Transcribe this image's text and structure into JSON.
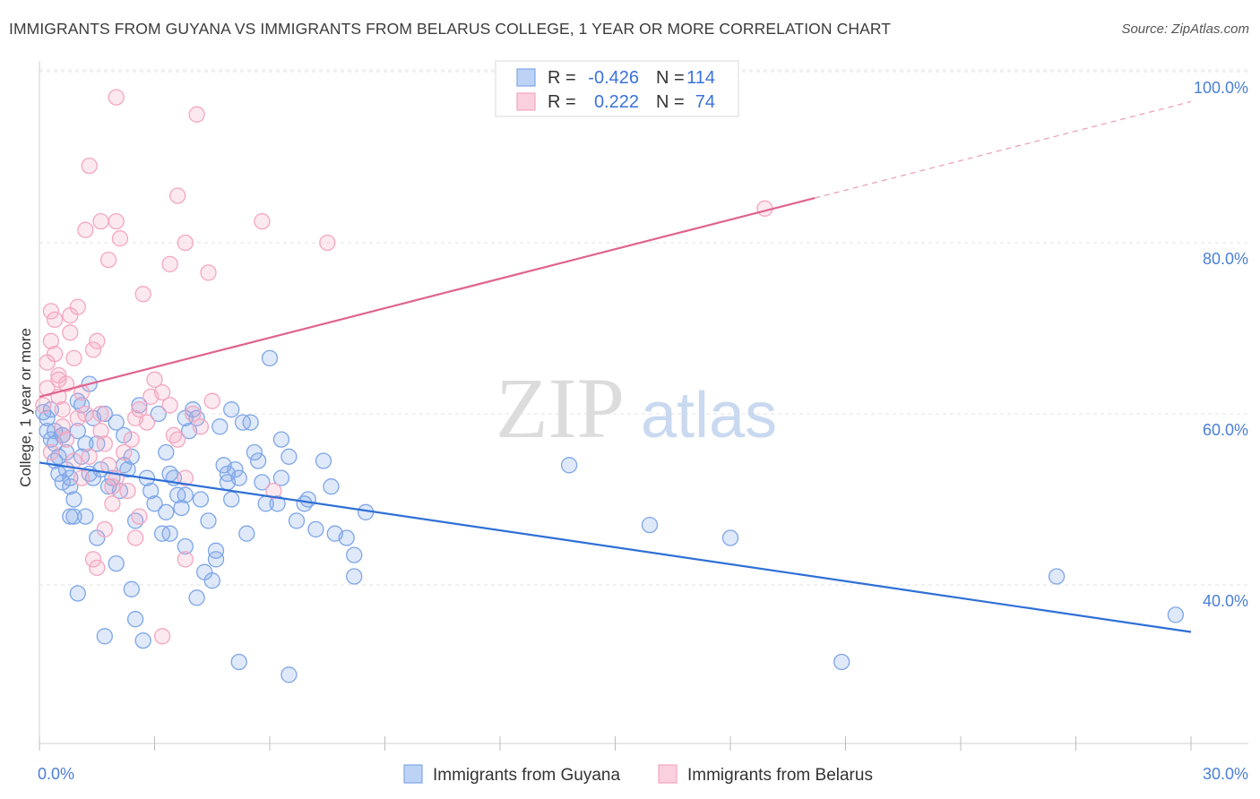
{
  "title": "IMMIGRANTS FROM GUYANA VS IMMIGRANTS FROM BELARUS COLLEGE, 1 YEAR OR MORE CORRELATION CHART",
  "source": "Source: ZipAtlas.com",
  "watermark": {
    "zip": "ZIP",
    "atlas": "atlas"
  },
  "stats_box": {
    "rows": [
      {
        "r_label": "R =",
        "r_value": "-0.426",
        "n_label": "N =",
        "n_value": "114",
        "color": "#7ea6e8"
      },
      {
        "r_label": "R =",
        "r_value": "0.222",
        "n_label": "N =",
        "n_value": "74",
        "color": "#f4a6c0"
      }
    ]
  },
  "chart_data": {
    "type": "scatter",
    "title": "IMMIGRANTS FROM GUYANA VS IMMIGRANTS FROM BELARUS COLLEGE, 1 YEAR OR MORE CORRELATION CHART",
    "xlabel": "",
    "ylabel": "College, 1 year or more",
    "xlim": [
      0,
      30
    ],
    "ylim": [
      22,
      102
    ],
    "x_ticks": [
      "0.0%",
      "30.0%"
    ],
    "y_ticks": [
      {
        "value": 40,
        "label": "40.0%"
      },
      {
        "value": 60,
        "label": "60.0%"
      },
      {
        "value": 80,
        "label": "80.0%"
      },
      {
        "value": 100,
        "label": "100.0%"
      }
    ],
    "grid": true,
    "legend": "bottom",
    "series": [
      {
        "name": "Immigrants from Guyana",
        "color": "#7ea6e8",
        "line_color": "#2f6fd6",
        "r": -0.426,
        "n": 114,
        "trend": {
          "x0": 0,
          "y0": 54.3,
          "x1": 30,
          "y1": 34.5,
          "dash_from": null
        },
        "points": [
          [
            0.1,
            60.2
          ],
          [
            0.2,
            59.5
          ],
          [
            0.2,
            58.0
          ],
          [
            0.3,
            57.0
          ],
          [
            0.3,
            60.5
          ],
          [
            0.4,
            56.5
          ],
          [
            0.4,
            58.0
          ],
          [
            0.5,
            55.0
          ],
          [
            0.5,
            53.0
          ],
          [
            0.6,
            52.0
          ],
          [
            0.6,
            57.5
          ],
          [
            0.7,
            55.5
          ],
          [
            0.7,
            53.5
          ],
          [
            0.8,
            51.5
          ],
          [
            0.8,
            48.0
          ],
          [
            0.9,
            50.0
          ],
          [
            0.9,
            48.0
          ],
          [
            1.0,
            61.5
          ],
          [
            1.0,
            58.0
          ],
          [
            1.1,
            61.0
          ],
          [
            1.2,
            56.5
          ],
          [
            1.3,
            53.0
          ],
          [
            1.3,
            63.5
          ],
          [
            1.4,
            52.5
          ],
          [
            1.4,
            59.5
          ],
          [
            1.5,
            56.5
          ],
          [
            1.6,
            53.5
          ],
          [
            1.7,
            60.0
          ],
          [
            1.8,
            51.5
          ],
          [
            1.9,
            52.5
          ],
          [
            2.0,
            59.0
          ],
          [
            2.1,
            51.0
          ],
          [
            2.2,
            57.5
          ],
          [
            2.3,
            53.5
          ],
          [
            2.4,
            55.0
          ],
          [
            2.5,
            47.5
          ],
          [
            2.6,
            61.0
          ],
          [
            2.8,
            52.5
          ],
          [
            2.9,
            51.0
          ],
          [
            3.0,
            49.5
          ],
          [
            3.1,
            60.0
          ],
          [
            3.2,
            46.0
          ],
          [
            3.3,
            48.5
          ],
          [
            3.4,
            53.0
          ],
          [
            3.5,
            52.5
          ],
          [
            3.6,
            50.5
          ],
          [
            3.7,
            49.0
          ],
          [
            3.8,
            44.5
          ],
          [
            3.9,
            58.0
          ],
          [
            4.0,
            60.5
          ],
          [
            4.1,
            59.5
          ],
          [
            4.2,
            50.0
          ],
          [
            4.3,
            41.5
          ],
          [
            4.4,
            47.5
          ],
          [
            4.5,
            40.5
          ],
          [
            4.6,
            44.0
          ],
          [
            4.7,
            58.5
          ],
          [
            4.8,
            54.0
          ],
          [
            4.9,
            53.0
          ],
          [
            5.0,
            50.0
          ],
          [
            5.1,
            53.5
          ],
          [
            5.2,
            52.5
          ],
          [
            5.3,
            59.0
          ],
          [
            5.4,
            46.0
          ],
          [
            5.5,
            59.0
          ],
          [
            5.6,
            55.5
          ],
          [
            5.7,
            54.5
          ],
          [
            5.8,
            52.0
          ],
          [
            5.9,
            49.5
          ],
          [
            6.0,
            66.5
          ],
          [
            6.2,
            49.5
          ],
          [
            6.3,
            57.0
          ],
          [
            6.5,
            55.0
          ],
          [
            6.7,
            47.5
          ],
          [
            6.9,
            49.5
          ],
          [
            7.2,
            46.5
          ],
          [
            7.4,
            54.5
          ],
          [
            7.7,
            46.0
          ],
          [
            8.0,
            45.5
          ],
          [
            8.2,
            43.5
          ],
          [
            8.5,
            48.5
          ],
          [
            1.0,
            39.0
          ],
          [
            1.7,
            34.0
          ],
          [
            2.5,
            36.0
          ],
          [
            2.7,
            33.5
          ],
          [
            4.1,
            38.5
          ],
          [
            5.2,
            31.0
          ],
          [
            6.5,
            29.5
          ],
          [
            2.4,
            39.5
          ],
          [
            3.4,
            46.0
          ],
          [
            3.8,
            50.5
          ],
          [
            4.6,
            43.0
          ],
          [
            2.0,
            42.5
          ],
          [
            1.5,
            45.5
          ],
          [
            1.2,
            48.0
          ],
          [
            0.8,
            52.5
          ],
          [
            0.4,
            54.5
          ],
          [
            0.6,
            57.5
          ],
          [
            1.1,
            55.0
          ],
          [
            5.0,
            60.5
          ],
          [
            7.6,
            51.5
          ],
          [
            6.3,
            52.5
          ],
          [
            8.2,
            41.0
          ],
          [
            7.0,
            50.0
          ],
          [
            4.9,
            52.0
          ],
          [
            3.8,
            59.5
          ],
          [
            3.3,
            55.5
          ],
          [
            2.2,
            54.0
          ],
          [
            13.8,
            54.0
          ],
          [
            15.9,
            47.0
          ],
          [
            18.0,
            45.5
          ],
          [
            26.5,
            41.0
          ],
          [
            29.6,
            36.5
          ],
          [
            20.9,
            31.0
          ]
        ]
      },
      {
        "name": "Immigrants from Belarus",
        "color": "#f4a6c0",
        "line_color": "#e0638f",
        "r": 0.222,
        "n": 74,
        "trend": {
          "x0": 0,
          "y0": 62.0,
          "x1": 30,
          "y1": 96.5,
          "dash_from": 20.2
        },
        "points": [
          [
            0.1,
            61.0
          ],
          [
            0.2,
            63.0
          ],
          [
            0.2,
            66.0
          ],
          [
            0.3,
            68.5
          ],
          [
            0.3,
            72.0
          ],
          [
            0.4,
            71.0
          ],
          [
            0.4,
            67.0
          ],
          [
            0.5,
            64.5
          ],
          [
            0.5,
            62.0
          ],
          [
            0.6,
            60.5
          ],
          [
            0.7,
            63.5
          ],
          [
            0.8,
            69.5
          ],
          [
            0.9,
            66.5
          ],
          [
            1.0,
            72.5
          ],
          [
            1.1,
            62.5
          ],
          [
            1.2,
            60.0
          ],
          [
            1.3,
            55.0
          ],
          [
            1.4,
            67.5
          ],
          [
            1.5,
            68.5
          ],
          [
            1.6,
            58.0
          ],
          [
            1.7,
            56.5
          ],
          [
            1.8,
            54.0
          ],
          [
            1.9,
            51.5
          ],
          [
            2.0,
            52.5
          ],
          [
            2.2,
            55.5
          ],
          [
            2.4,
            57.0
          ],
          [
            2.5,
            59.5
          ],
          [
            2.6,
            60.5
          ],
          [
            2.8,
            59.0
          ],
          [
            3.0,
            64.0
          ],
          [
            3.2,
            62.5
          ],
          [
            3.4,
            61.0
          ],
          [
            3.6,
            57.0
          ],
          [
            3.8,
            52.5
          ],
          [
            4.0,
            60.0
          ],
          [
            4.2,
            58.5
          ],
          [
            4.5,
            61.5
          ],
          [
            1.2,
            81.5
          ],
          [
            1.6,
            82.5
          ],
          [
            1.8,
            78.0
          ],
          [
            2.0,
            82.5
          ],
          [
            2.1,
            80.5
          ],
          [
            2.7,
            74.0
          ],
          [
            3.4,
            77.5
          ],
          [
            3.6,
            85.5
          ],
          [
            3.8,
            80.0
          ],
          [
            4.4,
            76.5
          ],
          [
            1.3,
            89.0
          ],
          [
            2.0,
            97.0
          ],
          [
            4.1,
            95.0
          ],
          [
            5.8,
            82.5
          ],
          [
            7.5,
            80.0
          ],
          [
            18.9,
            84.0
          ],
          [
            0.6,
            58.5
          ],
          [
            0.9,
            54.5
          ],
          [
            1.1,
            52.5
          ],
          [
            1.4,
            43.0
          ],
          [
            1.5,
            42.0
          ],
          [
            1.7,
            46.5
          ],
          [
            2.5,
            45.5
          ],
          [
            2.6,
            48.0
          ],
          [
            3.8,
            43.0
          ],
          [
            3.2,
            34.0
          ],
          [
            6.1,
            51.0
          ],
          [
            2.3,
            51.0
          ],
          [
            1.9,
            49.5
          ],
          [
            0.5,
            64.0
          ],
          [
            0.7,
            57.0
          ],
          [
            1.0,
            59.5
          ],
          [
            0.3,
            55.5
          ],
          [
            2.9,
            62.0
          ],
          [
            3.5,
            57.5
          ],
          [
            1.6,
            60.0
          ],
          [
            0.8,
            71.5
          ]
        ]
      }
    ]
  }
}
